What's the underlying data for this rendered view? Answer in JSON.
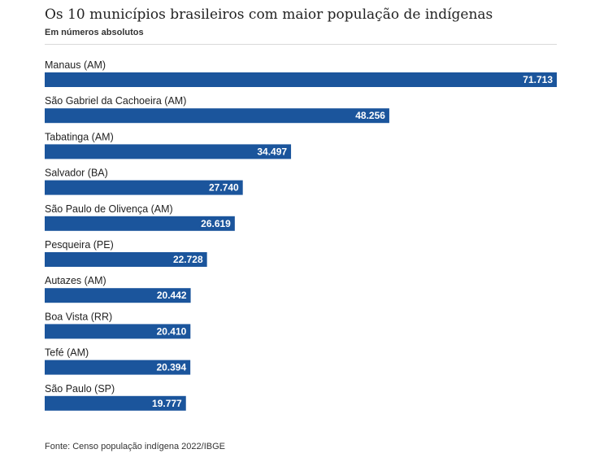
{
  "header": {
    "title": "Os 10 municípios brasileiros com maior população de indígenas",
    "subtitle": "Em números absolutos"
  },
  "footer": {
    "source": "Fonte: Censo população indígena 2022/IBGE"
  },
  "colors": {
    "bar": "#1b559c",
    "bar_label": "#ffffff",
    "category_label": "#222222"
  },
  "chart_data": {
    "type": "bar",
    "orientation": "horizontal",
    "title": "Os 10 municípios brasileiros com maior população de indígenas",
    "subtitle": "Em números absolutos",
    "categories": [
      "Manaus (AM)",
      "São Gabriel da Cachoeira (AM)",
      "Tabatinga (AM)",
      "Salvador (BA)",
      "São Paulo de Olivença (AM)",
      "Pesqueira (PE)",
      "Autazes (AM)",
      "Boa Vista (RR)",
      "Tefé (AM)",
      "São Paulo (SP)"
    ],
    "values": [
      71713,
      48256,
      34497,
      27740,
      26619,
      22728,
      20442,
      20410,
      20394,
      19777
    ],
    "value_labels": [
      "71.713",
      "48.256",
      "34.497",
      "27.740",
      "26.619",
      "22.728",
      "20.442",
      "20.410",
      "20.394",
      "19.777"
    ],
    "xlim": [
      0,
      71713
    ],
    "grid": false,
    "legend": "none"
  }
}
